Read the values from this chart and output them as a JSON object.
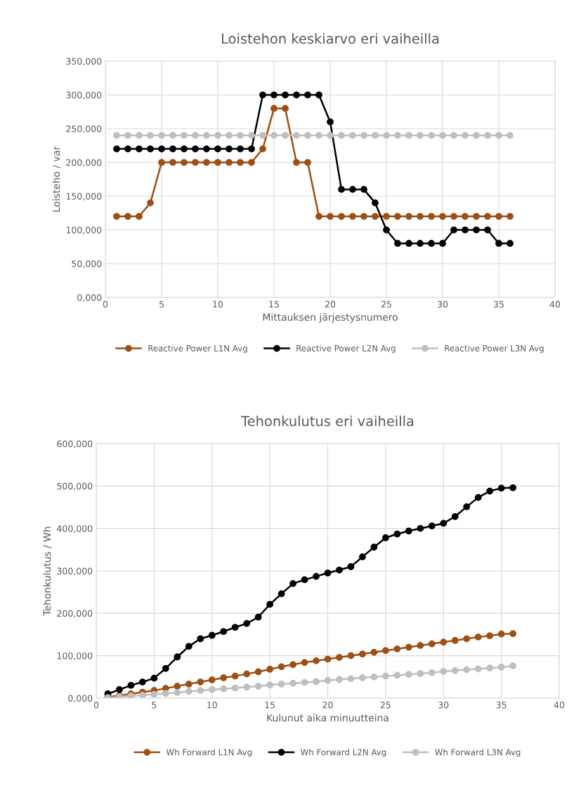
{
  "chart_data": [
    {
      "type": "line",
      "title": "Loistehon keskiarvo eri vaiheilla",
      "xlabel": "Mittauksen järjestysnumero",
      "ylabel": "Loisteho / var",
      "x": [
        1,
        2,
        3,
        4,
        5,
        6,
        7,
        8,
        9,
        10,
        11,
        12,
        13,
        14,
        15,
        16,
        17,
        18,
        19,
        20,
        21,
        22,
        23,
        24,
        25,
        26,
        27,
        28,
        29,
        30,
        31,
        32,
        33,
        34,
        35,
        36
      ],
      "series": [
        {
          "name": "Reactive Power L1N Avg",
          "color": "#9e4f14",
          "values": [
            120,
            120,
            120,
            140,
            200,
            200,
            200,
            200,
            200,
            200,
            200,
            200,
            200,
            220,
            280,
            280,
            200,
            200,
            120,
            120,
            120,
            120,
            120,
            120,
            120,
            120,
            120,
            120,
            120,
            120,
            120,
            120,
            120,
            120,
            120,
            120
          ]
        },
        {
          "name": "Reactive Power L2N Avg",
          "color": "#000000",
          "values": [
            220,
            220,
            220,
            220,
            220,
            220,
            220,
            220,
            220,
            220,
            220,
            220,
            220,
            300,
            300,
            300,
            300,
            300,
            300,
            260,
            160,
            160,
            160,
            140,
            100,
            80,
            80,
            80,
            80,
            80,
            100,
            100,
            100,
            100,
            80,
            80
          ]
        },
        {
          "name": "Reactive Power L3N Avg",
          "color": "#bfbfbf",
          "values": [
            240,
            240,
            240,
            240,
            240,
            240,
            240,
            240,
            240,
            240,
            240,
            240,
            240,
            240,
            240,
            240,
            240,
            240,
            240,
            240,
            240,
            240,
            240,
            240,
            240,
            240,
            240,
            240,
            240,
            240,
            240,
            240,
            240,
            240,
            240,
            240
          ]
        }
      ],
      "xlim": [
        0,
        40
      ],
      "xticks": [
        0,
        5,
        10,
        15,
        20,
        25,
        30,
        35,
        40
      ],
      "ylim": [
        0,
        350
      ],
      "yticks": [
        {
          "value": 0,
          "label": "0,000"
        },
        {
          "value": 50,
          "label": "50,000"
        },
        {
          "value": 100,
          "label": "100,000"
        },
        {
          "value": 150,
          "label": "150,000"
        },
        {
          "value": 200,
          "label": "200,000"
        },
        {
          "value": 250,
          "label": "250,000"
        },
        {
          "value": 300,
          "label": "300,000"
        },
        {
          "value": 350,
          "label": "350,000"
        }
      ],
      "grid": true,
      "legend": "bottom",
      "marker": "circle",
      "line_style": "solid"
    },
    {
      "type": "line",
      "title": "Tehonkulutus eri vaiheilla",
      "xlabel": "Kulunut aika minuutteina",
      "ylabel": "Tehonkulutus / Wh",
      "x": [
        1,
        2,
        3,
        4,
        5,
        6,
        7,
        8,
        9,
        10,
        11,
        12,
        13,
        14,
        15,
        16,
        17,
        18,
        19,
        20,
        21,
        22,
        23,
        24,
        25,
        26,
        27,
        28,
        29,
        30,
        31,
        32,
        33,
        34,
        35,
        36
      ],
      "series": [
        {
          "name": "Wh Forward L1N Avg",
          "color": "#9e4f14",
          "values": [
            3,
            6,
            10,
            14,
            18,
            23,
            28,
            33,
            38,
            43,
            48,
            52,
            57,
            62,
            68,
            74,
            79,
            84,
            88,
            92,
            96,
            100,
            104,
            108,
            112,
            116,
            120,
            124,
            128,
            132,
            136,
            140,
            144,
            147,
            151,
            152
          ]
        },
        {
          "name": "Wh Forward L2N Avg",
          "color": "#000000",
          "values": [
            10,
            20,
            30,
            38,
            47,
            70,
            97,
            122,
            140,
            148,
            157,
            167,
            176,
            191,
            221,
            246,
            270,
            279,
            287,
            295,
            302,
            310,
            333,
            356,
            378,
            387,
            394,
            400,
            406,
            412,
            428,
            451,
            473,
            488,
            495,
            496
          ]
        },
        {
          "name": "Wh Forward L3N Avg",
          "color": "#bfbfbf",
          "values": [
            1,
            3,
            5,
            7,
            9,
            11,
            13,
            16,
            18,
            20,
            22,
            24,
            26,
            28,
            31,
            33,
            35,
            37,
            39,
            42,
            44,
            46,
            48,
            50,
            52,
            54,
            56,
            58,
            60,
            63,
            65,
            67,
            69,
            71,
            73,
            76
          ]
        }
      ],
      "xlim": [
        0,
        40
      ],
      "xticks": [
        0,
        5,
        10,
        15,
        20,
        25,
        30,
        35,
        40
      ],
      "ylim": [
        0,
        600
      ],
      "yticks": [
        {
          "value": 0,
          "label": "0,000"
        },
        {
          "value": 100,
          "label": "100,000"
        },
        {
          "value": 200,
          "label": "200,000"
        },
        {
          "value": 300,
          "label": "300,000"
        },
        {
          "value": 400,
          "label": "400,000"
        },
        {
          "value": 500,
          "label": "500,000"
        },
        {
          "value": 600,
          "label": "600,000"
        }
      ],
      "grid": true,
      "legend": "bottom",
      "marker": "circle",
      "line_style": "solid"
    }
  ]
}
